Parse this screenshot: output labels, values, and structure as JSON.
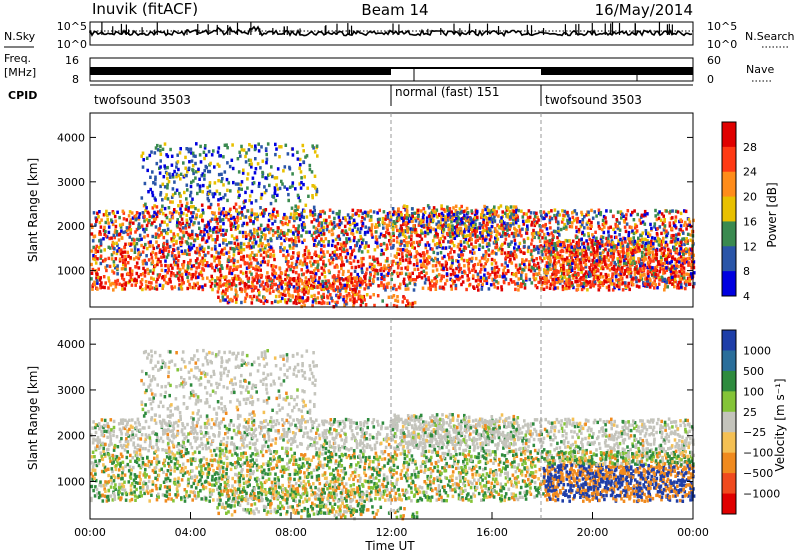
{
  "header": {
    "station": "Inuvik (fitACF)",
    "beam": "Beam 14",
    "date": "16/May/2014"
  },
  "strips": {
    "noise": {
      "left_label": "N.Sky",
      "right_label": "N.Search",
      "left_ticks": [
        "10^5",
        "10^0"
      ],
      "right_ticks": [
        "10^5",
        "10^0"
      ]
    },
    "freq": {
      "left_label": "Freq.",
      "left_unit": "[MHz]",
      "left_ticks": [
        "16",
        "8"
      ],
      "right_label": "Nave",
      "right_ticks": [
        "60",
        "0"
      ]
    },
    "cpid": {
      "label": "CPID",
      "segments": [
        {
          "name": "twofsound 3503",
          "start_hour": 0,
          "end_hour": 12
        },
        {
          "name": "normal (fast) 151",
          "start_hour": 12,
          "end_hour": 18
        },
        {
          "name": "twofsound 3503",
          "start_hour": 18,
          "end_hour": 24
        }
      ]
    }
  },
  "chart_data": [
    {
      "type": "heatmap",
      "id": "power",
      "ylabel": "Slant Range [km]",
      "yticks": [
        "4000",
        "3000",
        "2000",
        "1000"
      ],
      "ylim": [
        180,
        4550
      ],
      "xlim": [
        0,
        24
      ],
      "colorbar": {
        "label": "Power [dB]",
        "levels": [
          "28",
          "24",
          "20",
          "16",
          "12",
          "8",
          "4"
        ],
        "colors": [
          "#e00000",
          "#ff3a14",
          "#ff8c1a",
          "#e8c000",
          "#3a8a50",
          "#2a55a8",
          "#0000e0"
        ]
      }
    },
    {
      "type": "heatmap",
      "id": "velocity",
      "ylabel": "Slant Range [km]",
      "yticks": [
        "4000",
        "3000",
        "2000",
        "1000"
      ],
      "ylim": [
        180,
        4550
      ],
      "xlim": [
        0,
        24
      ],
      "xlabel": "Time UT",
      "xticks": [
        "00:00",
        "04:00",
        "08:00",
        "12:00",
        "16:00",
        "20:00",
        "00:00"
      ],
      "colorbar": {
        "label": "Velocity [m s⁻¹]",
        "levels": [
          "1000",
          "500",
          "100",
          "25",
          "−25",
          "−100",
          "−500",
          "−1000"
        ],
        "colors": [
          "#1e3ea8",
          "#2a6e9a",
          "#2e8b3e",
          "#84c438",
          "#c4c4bc",
          "#f4c054",
          "#f08a1e",
          "#f04a1e",
          "#e00000"
        ]
      }
    }
  ]
}
